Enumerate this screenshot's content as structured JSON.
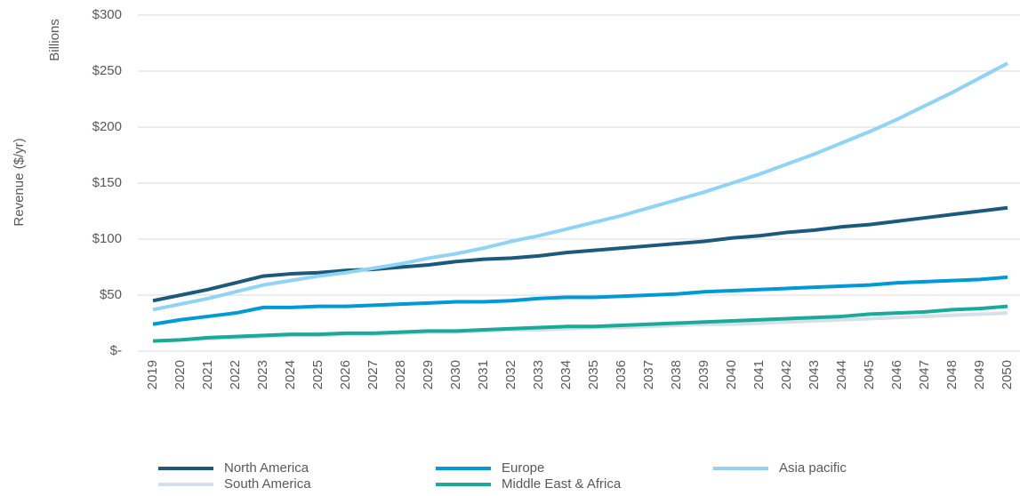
{
  "chart_data": {
    "type": "line",
    "y_label": "Revenue  ($/yr)",
    "y_unit": "Billions",
    "categories": [
      "2019",
      "2020",
      "2021",
      "2022",
      "2023",
      "2024",
      "2025",
      "2026",
      "2027",
      "2028",
      "2029",
      "2030",
      "2031",
      "2032",
      "2033",
      "2034",
      "2035",
      "2036",
      "2037",
      "2038",
      "2039",
      "2040",
      "2041",
      "2042",
      "2043",
      "2044",
      "2045",
      "2046",
      "2047",
      "2048",
      "2049",
      "2050"
    ],
    "series": [
      {
        "name": "North America",
        "color": "#1c5a7d",
        "values": [
          45,
          50,
          55,
          61,
          67,
          69,
          70,
          72,
          73,
          75,
          77,
          80,
          82,
          83,
          85,
          88,
          90,
          92,
          94,
          96,
          98,
          101,
          103,
          106,
          108,
          111,
          113,
          116,
          119,
          122,
          125,
          128
        ]
      },
      {
        "name": "Europe",
        "color": "#0099d8",
        "values": [
          24,
          28,
          31,
          34,
          39,
          39,
          40,
          40,
          41,
          42,
          43,
          44,
          44,
          45,
          47,
          48,
          48,
          49,
          50,
          51,
          53,
          54,
          55,
          56,
          57,
          58,
          59,
          61,
          62,
          63,
          64,
          66
        ]
      },
      {
        "name": "Asia pacific",
        "color": "#8fd3f5",
        "values": [
          37,
          42,
          47,
          53,
          59,
          63,
          67,
          70,
          74,
          78,
          83,
          87,
          92,
          98,
          103,
          109,
          115,
          121,
          128,
          135,
          142,
          150,
          158,
          167,
          176,
          186,
          196,
          207,
          219,
          231,
          244,
          257
        ]
      },
      {
        "name": "South America",
        "color": "#d6e0e8",
        "values": [
          9,
          10,
          11,
          12,
          13,
          14,
          14,
          15,
          15,
          16,
          17,
          17,
          18,
          19,
          19,
          20,
          21,
          21,
          22,
          23,
          24,
          24,
          25,
          26,
          27,
          28,
          29,
          30,
          31,
          32,
          33,
          34
        ]
      },
      {
        "name": "Middle East & Africa",
        "color": "#1aaa9b",
        "values": [
          9,
          10,
          12,
          13,
          14,
          15,
          15,
          16,
          16,
          17,
          18,
          18,
          19,
          20,
          21,
          22,
          22,
          23,
          24,
          25,
          26,
          27,
          28,
          29,
          30,
          31,
          33,
          34,
          35,
          37,
          38,
          40
        ]
      }
    ],
    "ylim": [
      0,
      300
    ],
    "yticks": [
      {
        "value": 0,
        "label": "$-"
      },
      {
        "value": 50,
        "label": "$50"
      },
      {
        "value": 100,
        "label": "$100"
      },
      {
        "value": 150,
        "label": "$150"
      },
      {
        "value": 200,
        "label": "$200"
      },
      {
        "value": 250,
        "label": "$250"
      },
      {
        "value": 300,
        "label": "$300"
      }
    ],
    "grid": true
  }
}
